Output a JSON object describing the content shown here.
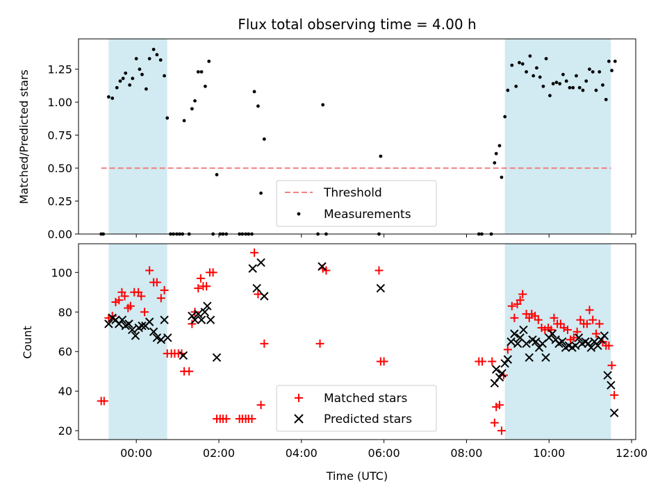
{
  "chart_data": [
    {
      "type": "scatter",
      "title": "Flux total observing time = 4.00 h",
      "xlabel": "",
      "ylabel": "Matched/Predicted stars",
      "x_unit": "hours (UTC), relative to 00:00",
      "xlim": [
        -1.4,
        12.1
      ],
      "ylim": [
        0.0,
        1.48
      ],
      "yticks": [
        "0.00",
        "0.25",
        "0.50",
        "0.75",
        "1.00",
        "1.25"
      ],
      "threshold": {
        "name": "Threshold",
        "value": 0.5,
        "x_range": [
          -0.85,
          11.5
        ],
        "color": "#f08080"
      },
      "shaded_regions": [
        [
          -0.67,
          0.75
        ],
        [
          8.93,
          11.5
        ]
      ],
      "shade_color": "#add8e6",
      "legend": {
        "location": "lower-center",
        "entries": [
          "Threshold",
          "Measurements"
        ]
      },
      "series": [
        {
          "name": "Measurements",
          "marker": "dot",
          "color": "#000000",
          "points": [
            [
              -0.85,
              0.0
            ],
            [
              -0.8,
              0.0
            ],
            [
              -0.67,
              1.04
            ],
            [
              -0.58,
              1.03
            ],
            [
              -0.47,
              1.11
            ],
            [
              -0.39,
              1.16
            ],
            [
              -0.32,
              1.18
            ],
            [
              -0.26,
              1.22
            ],
            [
              -0.16,
              1.13
            ],
            [
              -0.09,
              1.18
            ],
            [
              0.0,
              1.33
            ],
            [
              0.08,
              1.25
            ],
            [
              0.14,
              1.21
            ],
            [
              0.24,
              1.1
            ],
            [
              0.32,
              1.33
            ],
            [
              0.42,
              1.4
            ],
            [
              0.5,
              1.36
            ],
            [
              0.59,
              1.32
            ],
            [
              0.68,
              1.2
            ],
            [
              0.75,
              0.88
            ],
            [
              0.83,
              0.0
            ],
            [
              0.9,
              0.0
            ],
            [
              0.98,
              0.0
            ],
            [
              1.05,
              0.0
            ],
            [
              1.12,
              0.0
            ],
            [
              1.16,
              0.86
            ],
            [
              1.28,
              0.0
            ],
            [
              1.35,
              0.95
            ],
            [
              1.42,
              1.01
            ],
            [
              1.5,
              1.23
            ],
            [
              1.58,
              1.23
            ],
            [
              1.67,
              1.12
            ],
            [
              1.76,
              1.31
            ],
            [
              1.86,
              0.0
            ],
            [
              1.95,
              0.45
            ],
            [
              2.03,
              0.0
            ],
            [
              2.1,
              0.0
            ],
            [
              2.18,
              0.0
            ],
            [
              2.5,
              0.0
            ],
            [
              2.57,
              0.0
            ],
            [
              2.65,
              0.0
            ],
            [
              2.72,
              0.0
            ],
            [
              2.8,
              0.0
            ],
            [
              2.86,
              1.08
            ],
            [
              2.95,
              0.97
            ],
            [
              3.02,
              0.31
            ],
            [
              3.1,
              0.72
            ],
            [
              4.4,
              0.0
            ],
            [
              4.52,
              0.98
            ],
            [
              4.6,
              0.0
            ],
            [
              5.88,
              0.0
            ],
            [
              5.92,
              0.59
            ],
            [
              8.3,
              0.0
            ],
            [
              8.37,
              0.0
            ],
            [
              8.6,
              0.0
            ],
            [
              8.68,
              0.54
            ],
            [
              8.72,
              0.61
            ],
            [
              8.8,
              0.67
            ],
            [
              8.85,
              0.43
            ],
            [
              8.93,
              0.89
            ],
            [
              9.0,
              1.09
            ],
            [
              9.1,
              1.28
            ],
            [
              9.2,
              1.12
            ],
            [
              9.28,
              1.3
            ],
            [
              9.36,
              1.29
            ],
            [
              9.45,
              1.23
            ],
            [
              9.54,
              1.35
            ],
            [
              9.62,
              1.2
            ],
            [
              9.7,
              1.26
            ],
            [
              9.78,
              1.19
            ],
            [
              9.86,
              1.12
            ],
            [
              9.93,
              1.33
            ],
            [
              10.02,
              1.05
            ],
            [
              10.1,
              1.14
            ],
            [
              10.18,
              1.15
            ],
            [
              10.26,
              1.14
            ],
            [
              10.34,
              1.21
            ],
            [
              10.42,
              1.16
            ],
            [
              10.5,
              1.11
            ],
            [
              10.58,
              1.11
            ],
            [
              10.66,
              1.2
            ],
            [
              10.74,
              1.11
            ],
            [
              10.82,
              1.09
            ],
            [
              10.9,
              1.16
            ],
            [
              10.98,
              1.25
            ],
            [
              11.06,
              1.23
            ],
            [
              11.14,
              1.09
            ],
            [
              11.22,
              1.23
            ],
            [
              11.3,
              1.13
            ],
            [
              11.38,
              1.02
            ],
            [
              11.45,
              1.31
            ],
            [
              11.52,
              1.24
            ],
            [
              11.6,
              1.31
            ]
          ]
        }
      ]
    },
    {
      "type": "scatter",
      "title": "",
      "xlabel": "Time (UTC)",
      "ylabel": "Count",
      "x_unit": "hours (UTC), relative to 00:00",
      "xlim": [
        -1.4,
        12.1
      ],
      "ylim": [
        15.5,
        114.5
      ],
      "xticks": [
        0,
        2,
        4,
        6,
        8,
        10,
        12
      ],
      "xticklabels": [
        "00:00",
        "02:00",
        "04:00",
        "06:00",
        "08:00",
        "10:00",
        "12:00"
      ],
      "yticks": [
        20,
        40,
        60,
        80,
        100
      ],
      "shaded_regions": [
        [
          -0.67,
          0.75
        ],
        [
          8.93,
          11.5
        ]
      ],
      "shade_color": "#add8e6",
      "legend": {
        "location": "lower-center",
        "entries": [
          "Matched stars",
          "Predicted stars"
        ]
      },
      "series": [
        {
          "name": "Matched stars",
          "marker": "plus",
          "color": "#ff0000",
          "points": [
            [
              -0.85,
              35
            ],
            [
              -0.78,
              35
            ],
            [
              -0.67,
              77
            ],
            [
              -0.58,
              78
            ],
            [
              -0.5,
              85
            ],
            [
              -0.42,
              86
            ],
            [
              -0.35,
              90
            ],
            [
              -0.28,
              88
            ],
            [
              -0.2,
              82
            ],
            [
              -0.14,
              83
            ],
            [
              -0.05,
              90
            ],
            [
              0.05,
              90
            ],
            [
              0.12,
              88
            ],
            [
              0.2,
              80
            ],
            [
              0.32,
              101
            ],
            [
              0.42,
              95
            ],
            [
              0.5,
              95
            ],
            [
              0.6,
              87
            ],
            [
              0.68,
              91
            ],
            [
              0.75,
              59
            ],
            [
              0.85,
              59
            ],
            [
              0.93,
              59
            ],
            [
              1.02,
              59
            ],
            [
              1.1,
              59
            ],
            [
              1.16,
              50
            ],
            [
              1.28,
              50
            ],
            [
              1.35,
              74
            ],
            [
              1.42,
              80
            ],
            [
              1.5,
              92
            ],
            [
              1.56,
              97
            ],
            [
              1.62,
              93
            ],
            [
              1.7,
              93
            ],
            [
              1.78,
              100
            ],
            [
              1.86,
              100
            ],
            [
              1.95,
              26
            ],
            [
              2.03,
              26
            ],
            [
              2.1,
              26
            ],
            [
              2.18,
              26
            ],
            [
              2.5,
              26
            ],
            [
              2.57,
              26
            ],
            [
              2.65,
              26
            ],
            [
              2.72,
              26
            ],
            [
              2.8,
              26
            ],
            [
              2.86,
              110
            ],
            [
              2.95,
              89
            ],
            [
              3.02,
              33
            ],
            [
              3.1,
              64
            ],
            [
              4.45,
              64
            ],
            [
              4.52,
              102
            ],
            [
              4.6,
              101
            ],
            [
              5.88,
              101
            ],
            [
              5.92,
              55
            ],
            [
              6.0,
              55
            ],
            [
              8.3,
              55
            ],
            [
              8.38,
              55
            ],
            [
              8.62,
              55
            ],
            [
              8.68,
              24
            ],
            [
              8.72,
              32
            ],
            [
              8.8,
              33
            ],
            [
              8.85,
              20
            ],
            [
              8.9,
              48
            ],
            [
              9.0,
              61
            ],
            [
              9.1,
              83
            ],
            [
              9.16,
              77
            ],
            [
              9.23,
              84
            ],
            [
              9.3,
              86
            ],
            [
              9.36,
              89
            ],
            [
              9.45,
              79
            ],
            [
              9.52,
              77
            ],
            [
              9.58,
              79
            ],
            [
              9.66,
              78
            ],
            [
              9.74,
              76
            ],
            [
              9.82,
              72
            ],
            [
              9.9,
              71
            ],
            [
              9.98,
              72
            ],
            [
              10.05,
              71
            ],
            [
              10.12,
              77
            ],
            [
              10.2,
              74
            ],
            [
              10.28,
              74
            ],
            [
              10.36,
              72
            ],
            [
              10.45,
              71
            ],
            [
              10.52,
              66
            ],
            [
              10.6,
              67
            ],
            [
              10.68,
              70
            ],
            [
              10.76,
              76
            ],
            [
              10.84,
              74
            ],
            [
              10.92,
              74
            ],
            [
              10.98,
              81
            ],
            [
              11.06,
              76
            ],
            [
              11.14,
              69
            ],
            [
              11.22,
              74
            ],
            [
              11.3,
              65
            ],
            [
              11.38,
              63
            ],
            [
              11.45,
              63
            ],
            [
              11.52,
              53
            ],
            [
              11.58,
              38
            ]
          ]
        },
        {
          "name": "Predicted stars",
          "marker": "x",
          "color": "#000000",
          "points": [
            [
              -0.67,
              74
            ],
            [
              -0.58,
              77
            ],
            [
              -0.5,
              76
            ],
            [
              -0.42,
              74
            ],
            [
              -0.34,
              76
            ],
            [
              -0.26,
              73
            ],
            [
              -0.18,
              74
            ],
            [
              -0.1,
              71
            ],
            [
              -0.02,
              68
            ],
            [
              0.06,
              72
            ],
            [
              0.14,
              73
            ],
            [
              0.22,
              73
            ],
            [
              0.32,
              75
            ],
            [
              0.42,
              70
            ],
            [
              0.5,
              67
            ],
            [
              0.6,
              66
            ],
            [
              0.68,
              76
            ],
            [
              0.76,
              67
            ],
            [
              1.14,
              58
            ],
            [
              1.35,
              78
            ],
            [
              1.42,
              76
            ],
            [
              1.5,
              79
            ],
            [
              1.58,
              76
            ],
            [
              1.66,
              80
            ],
            [
              1.72,
              83
            ],
            [
              1.8,
              76
            ],
            [
              1.95,
              57
            ],
            [
              2.82,
              102
            ],
            [
              2.92,
              92
            ],
            [
              3.02,
              105
            ],
            [
              3.1,
              88
            ],
            [
              4.5,
              103
            ],
            [
              5.92,
              92
            ],
            [
              8.68,
              44
            ],
            [
              8.72,
              51
            ],
            [
              8.8,
              47
            ],
            [
              8.86,
              49
            ],
            [
              8.93,
              54
            ],
            [
              9.0,
              56
            ],
            [
              9.08,
              65
            ],
            [
              9.16,
              69
            ],
            [
              9.24,
              64
            ],
            [
              9.3,
              67
            ],
            [
              9.38,
              71
            ],
            [
              9.45,
              64
            ],
            [
              9.52,
              57
            ],
            [
              9.6,
              66
            ],
            [
              9.68,
              65
            ],
            [
              9.76,
              62
            ],
            [
              9.84,
              64
            ],
            [
              9.92,
              57
            ],
            [
              10.0,
              67
            ],
            [
              10.08,
              69
            ],
            [
              10.16,
              66
            ],
            [
              10.24,
              64
            ],
            [
              10.32,
              65
            ],
            [
              10.4,
              62
            ],
            [
              10.48,
              63
            ],
            [
              10.56,
              62
            ],
            [
              10.64,
              63
            ],
            [
              10.72,
              67
            ],
            [
              10.8,
              64
            ],
            [
              10.88,
              65
            ],
            [
              10.95,
              64
            ],
            [
              11.02,
              62
            ],
            [
              11.1,
              65
            ],
            [
              11.18,
              63
            ],
            [
              11.26,
              66
            ],
            [
              11.34,
              68
            ],
            [
              11.42,
              48
            ],
            [
              11.5,
              43
            ],
            [
              11.58,
              29
            ]
          ]
        }
      ]
    }
  ]
}
